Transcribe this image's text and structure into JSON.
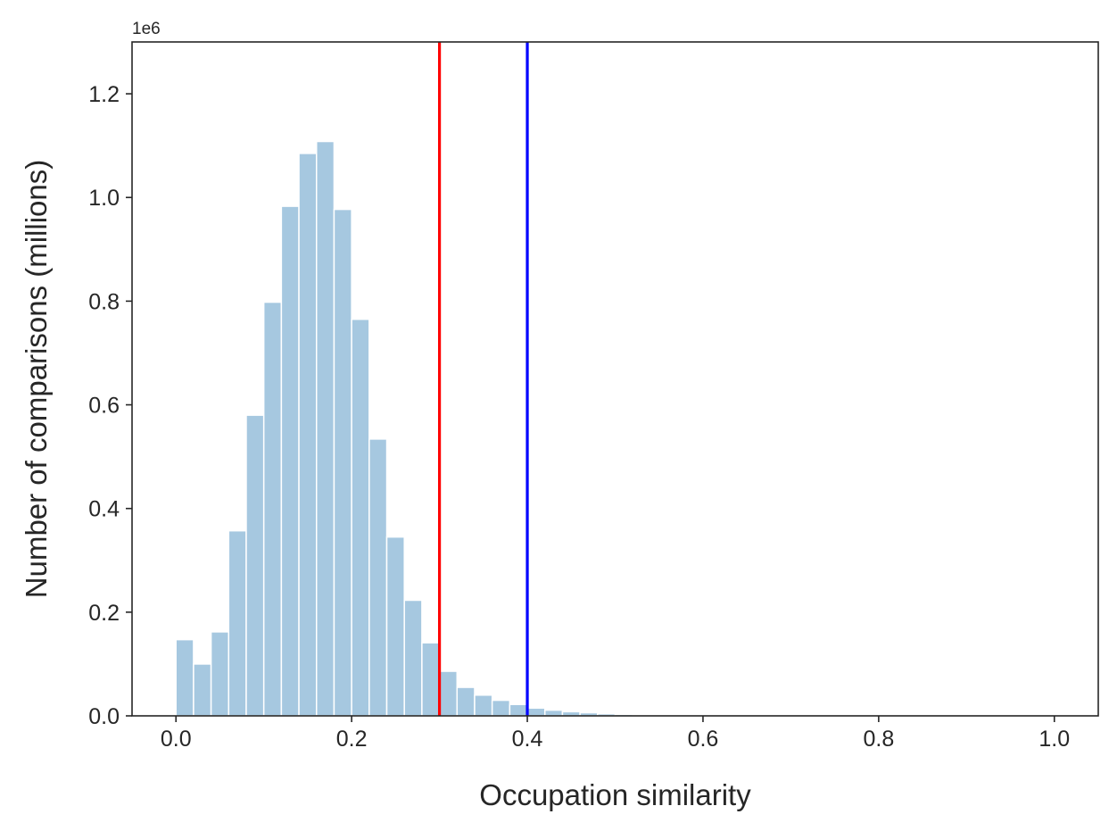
{
  "chart_data": {
    "type": "bar",
    "xlabel": "Occupation similarity",
    "ylabel": "Number of comparisons (millions)",
    "y_offset_label": "1e6",
    "xlim": [
      -0.05,
      1.05
    ],
    "ylim": [
      0,
      1300000
    ],
    "x_ticks": [
      0.0,
      0.2,
      0.4,
      0.6,
      0.8,
      1.0
    ],
    "x_tick_labels": [
      "0.0",
      "0.2",
      "0.4",
      "0.6",
      "0.8",
      "1.0"
    ],
    "y_ticks": [
      0,
      200000,
      400000,
      600000,
      800000,
      1000000,
      1200000
    ],
    "y_tick_labels": [
      "0.0",
      "0.2",
      "0.4",
      "0.6",
      "0.8",
      "1.0",
      "1.2"
    ],
    "bin_start": 0.0,
    "bin_width": 0.02,
    "values": [
      147000,
      100000,
      162000,
      357000,
      580000,
      798000,
      983000,
      1085000,
      1108000,
      977000,
      765000,
      534000,
      345000,
      223000,
      141000,
      86000,
      55000,
      40000,
      30000,
      22000,
      15000,
      11000,
      8000,
      6000,
      4000,
      3000,
      2000,
      1500,
      1000,
      700,
      500,
      300,
      200,
      150,
      100,
      80,
      60,
      40,
      30,
      20,
      15,
      10,
      8,
      6,
      5,
      4,
      3,
      2,
      2,
      1
    ],
    "bar_color": "#a6c8e0",
    "bar_edge_color": "#ffffff",
    "vlines": [
      {
        "x": 0.3,
        "color": "#ff0000"
      },
      {
        "x": 0.4,
        "color": "#0000ff"
      }
    ],
    "grid": false,
    "legend": "none"
  }
}
